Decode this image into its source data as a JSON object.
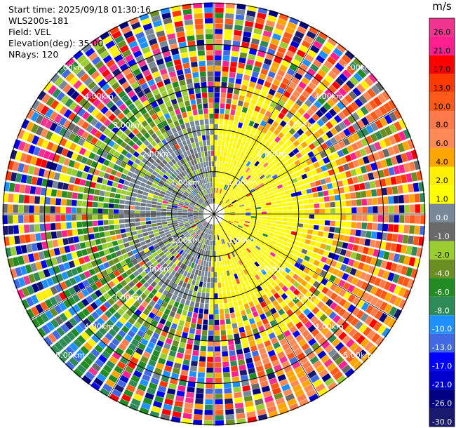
{
  "header": {
    "start_time": "Start time: 2025/09/18 01:30:16",
    "station": "WLS200s-181",
    "field": "Field: VEL",
    "elevation": "Elevation(deg): 35.00",
    "nrays": "NRays: 120"
  },
  "colorbar": {
    "unit": "m/s",
    "levels": [
      {
        "label": "26.0",
        "color": "#f0348f"
      },
      {
        "label": "21.0",
        "color": "#ff1f8f"
      },
      {
        "label": "17.0",
        "color": "#ff0000"
      },
      {
        "label": "13.0",
        "color": "#ff3a00"
      },
      {
        "label": "10.0",
        "color": "#ff5a1a"
      },
      {
        "label": "8.0",
        "color": "#ff7a4a"
      },
      {
        "label": "6.0",
        "color": "#ff8a56"
      },
      {
        "label": "4.0",
        "color": "#ffa500"
      },
      {
        "label": "2.0",
        "color": "#ffef00"
      },
      {
        "label": "1.0",
        "color": "#ffff00"
      },
      {
        "label": "0.0",
        "color": "#778899"
      },
      {
        "label": "-1.0",
        "color": "#696969"
      },
      {
        "label": "-2.0",
        "color": "#9acd32"
      },
      {
        "label": "-4.0",
        "color": "#6b8e23"
      },
      {
        "label": "-6.0",
        "color": "#228b22"
      },
      {
        "label": "-8.0",
        "color": "#2e8b57"
      },
      {
        "label": "-10.0",
        "color": "#1e90ff"
      },
      {
        "label": "-13.0",
        "color": "#4169e1"
      },
      {
        "label": "-17.0",
        "color": "#0000ff"
      },
      {
        "label": "-21.0",
        "color": "#0000cd"
      },
      {
        "label": "-26.0",
        "color": "#000080"
      },
      {
        "label": "-30.0",
        "color": "#191970"
      }
    ]
  },
  "chart_data": {
    "type": "ppi",
    "field": "VEL",
    "nrays": 120,
    "max_range_km": 5.0,
    "range_rings_km": [
      1.0,
      2.0,
      3.0,
      4.0,
      5.0
    ],
    "ring_labels": [
      "1.00km",
      "2.00km",
      "3.00km",
      "4.00km",
      "5.00km"
    ],
    "spokes_deg": [
      0,
      30,
      60,
      90,
      120,
      150
    ],
    "value_range": [
      -30.0,
      26.0
    ],
    "inner_region_km": 1.2,
    "mid_region_km": 2.3,
    "description_of_pattern": [
      {
        "sector": "east (0-2.3 km)",
        "values": "1.0 to 2.0"
      },
      {
        "sector": "west (0-2.3 km)",
        "values": "0.0 to -2.0"
      },
      {
        "sector": "southeast outer",
        "values": "4.0 to 10.0"
      },
      {
        "sector": "southwest outer",
        "values": "-6.0 to -13.0"
      },
      {
        "sector": "outer ring (>3 km)",
        "values": "mixed noise -30.0 to 26.0"
      }
    ]
  }
}
